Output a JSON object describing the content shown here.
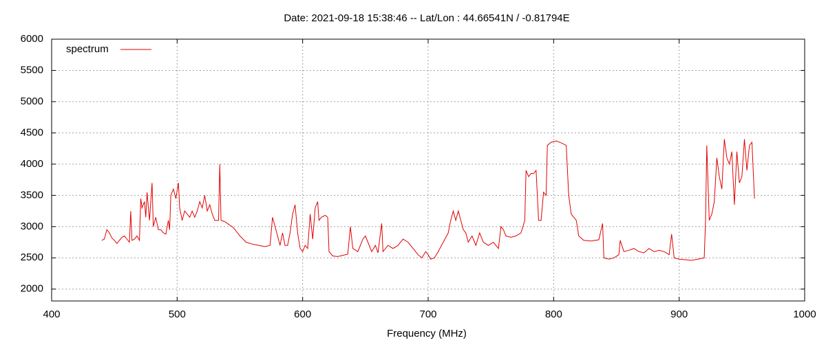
{
  "chart_data": {
    "type": "line",
    "title": "Date: 2021-09-18 15:38:46  --  Lat/Lon : 44.66541N / -0.81794E",
    "x_label": "Frequency (MHz)",
    "xlim": [
      400,
      1000
    ],
    "xticks": [
      400,
      500,
      600,
      700,
      800,
      900,
      1000
    ],
    "ylim": [
      1810,
      6000
    ],
    "yticks": [
      2000,
      2500,
      3000,
      3500,
      4000,
      4500,
      5000,
      5500,
      6000
    ],
    "grid": true,
    "legend": "top-left",
    "x": [
      440,
      442,
      444,
      446,
      448,
      450,
      452,
      454,
      456,
      458,
      460,
      462,
      463,
      464,
      466,
      468,
      470,
      471,
      472,
      474,
      475,
      476,
      478,
      480,
      481,
      483,
      485,
      487,
      489,
      491,
      493,
      494,
      495,
      497,
      499,
      501,
      502,
      504,
      506,
      508,
      510,
      512,
      514,
      516,
      518,
      520,
      522,
      524,
      526,
      528,
      530,
      533,
      534,
      535,
      538,
      540,
      545,
      550,
      555,
      560,
      565,
      570,
      574,
      576,
      578,
      580,
      582,
      584,
      586,
      588,
      590,
      592,
      594,
      596,
      598,
      600,
      602,
      604,
      606,
      608,
      610,
      612,
      613,
      615,
      618,
      620,
      621,
      624,
      628,
      632,
      636,
      638,
      640,
      644,
      648,
      650,
      652,
      655,
      658,
      660,
      663,
      664,
      668,
      672,
      676,
      680,
      684,
      688,
      692,
      695,
      698,
      700,
      702,
      705,
      708,
      712,
      716,
      718,
      720,
      722,
      724,
      726,
      728,
      730,
      732,
      735,
      738,
      741,
      744,
      748,
      752,
      756,
      758,
      760,
      762,
      766,
      770,
      774,
      777,
      778,
      780,
      782,
      784,
      786,
      788,
      790,
      792,
      794,
      795,
      798,
      802,
      806,
      810,
      812,
      814,
      816,
      818,
      820,
      824,
      830,
      836,
      839,
      840,
      844,
      848,
      852,
      853,
      856,
      860,
      864,
      868,
      872,
      876,
      880,
      884,
      888,
      892,
      894,
      896,
      900,
      905,
      910,
      915,
      920,
      921,
      922,
      924,
      926,
      928,
      930,
      932,
      934,
      936,
      938,
      940,
      942,
      944,
      946,
      948,
      950,
      952,
      954,
      956,
      958,
      960
    ],
    "series": [
      {
        "name": "spectrum",
        "color": "#e00000",
        "values": [
          2780,
          2800,
          2950,
          2900,
          2820,
          2780,
          2730,
          2780,
          2830,
          2850,
          2800,
          2750,
          3250,
          2780,
          2800,
          2850,
          2780,
          3450,
          3300,
          3400,
          3150,
          3550,
          3100,
          3700,
          3000,
          3150,
          2950,
          2950,
          2900,
          2880,
          3100,
          2950,
          3500,
          3600,
          3450,
          3700,
          3300,
          3100,
          3250,
          3200,
          3150,
          3250,
          3150,
          3250,
          3400,
          3300,
          3500,
          3250,
          3350,
          3200,
          3100,
          3100,
          4000,
          3100,
          3080,
          3050,
          2980,
          2850,
          2750,
          2720,
          2700,
          2680,
          2700,
          3150,
          3000,
          2850,
          2700,
          2900,
          2700,
          2700,
          2900,
          3200,
          3350,
          2900,
          2650,
          2600,
          2700,
          2650,
          3200,
          2800,
          3300,
          3400,
          3100,
          3150,
          3180,
          3150,
          2600,
          2530,
          2520,
          2540,
          2560,
          3000,
          2650,
          2600,
          2800,
          2850,
          2750,
          2600,
          2700,
          2580,
          3050,
          2600,
          2700,
          2650,
          2700,
          2800,
          2750,
          2650,
          2550,
          2500,
          2600,
          2550,
          2480,
          2500,
          2600,
          2750,
          2900,
          3100,
          3250,
          3100,
          3250,
          3100,
          2950,
          2900,
          2750,
          2850,
          2700,
          2900,
          2750,
          2700,
          2750,
          2650,
          3000,
          2950,
          2850,
          2830,
          2850,
          2900,
          3100,
          3900,
          3800,
          3850,
          3850,
          3900,
          3100,
          3100,
          3550,
          3500,
          4300,
          4350,
          4370,
          4340,
          4300,
          3500,
          3200,
          3150,
          3100,
          2850,
          2780,
          2770,
          2790,
          3050,
          2500,
          2480,
          2500,
          2550,
          2780,
          2600,
          2620,
          2650,
          2600,
          2580,
          2650,
          2600,
          2620,
          2600,
          2550,
          2880,
          2500,
          2480,
          2470,
          2460,
          2480,
          2500,
          3100,
          4300,
          3100,
          3200,
          3400,
          4100,
          3800,
          3600,
          4400,
          4100,
          4000,
          4200,
          3350,
          4200,
          3700,
          3800,
          4400,
          3900,
          4300,
          4350,
          3450
        ]
      }
    ]
  }
}
